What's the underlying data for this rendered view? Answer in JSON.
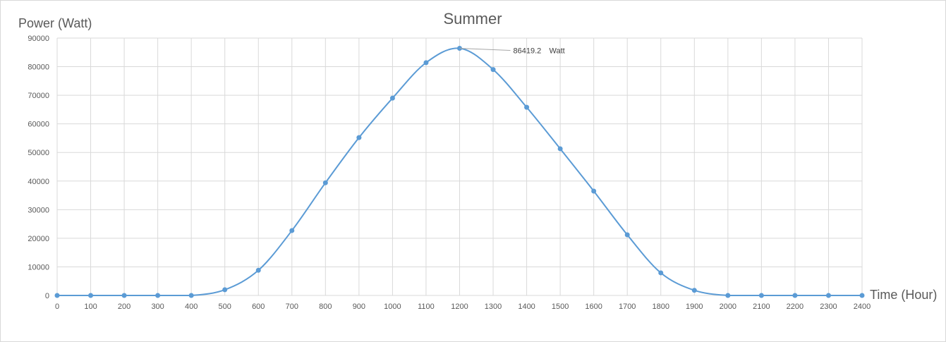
{
  "chart_data": {
    "type": "line",
    "title": "Summer",
    "xlabel": "Time (Hour)",
    "ylabel": "Power (Watt)",
    "xlim": [
      0,
      2400
    ],
    "ylim": [
      0,
      90000
    ],
    "x_ticks": [
      0,
      100,
      200,
      300,
      400,
      500,
      600,
      700,
      800,
      900,
      1000,
      1100,
      1200,
      1300,
      1400,
      1500,
      1600,
      1700,
      1800,
      1900,
      2000,
      2100,
      2200,
      2300,
      2400
    ],
    "y_ticks": [
      0,
      10000,
      20000,
      30000,
      40000,
      50000,
      60000,
      70000,
      80000,
      90000
    ],
    "grid": true,
    "line_color": "#5b9bd5",
    "series": [
      {
        "x": [
          0,
          100,
          200,
          300,
          400,
          500,
          600,
          700,
          800,
          900,
          1000,
          1100,
          1200,
          1300,
          1400,
          1500,
          1600,
          1700,
          1800,
          1900,
          2000,
          2100,
          2200,
          2300,
          2400
        ],
        "y": [
          0,
          0,
          0,
          0,
          0,
          2000,
          8800,
          22700,
          39400,
          55200,
          69000,
          81400,
          86419.2,
          79000,
          65800,
          51300,
          36500,
          21200,
          7900,
          1800,
          0,
          0,
          0,
          0,
          0
        ]
      }
    ],
    "annotation": {
      "x": 1200,
      "y": 86419.2,
      "value": "86419.2",
      "unit": "Watt"
    }
  }
}
